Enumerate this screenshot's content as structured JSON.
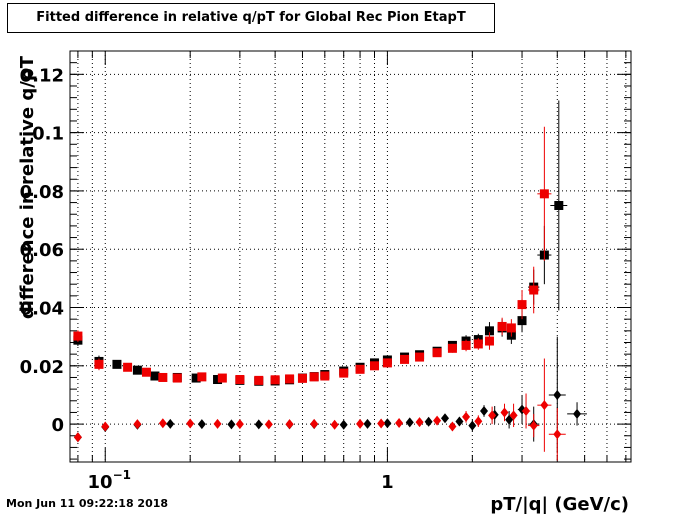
{
  "title": "Fitted difference in relative q/pT for Global Rec Pion EtapT",
  "timestamp": "Mon Jun 11 09:22:18 2018",
  "chart_data": {
    "type": "scatter",
    "title": "Fitted difference in relative q/pT for Global Rec Pion EtapT",
    "xlabel": "pT/|q| (GeV/c)",
    "ylabel": "difference in relative q/pT",
    "xscale": "log",
    "xlim": [
      0.075,
      7.3
    ],
    "ylim": [
      -0.013,
      0.128
    ],
    "grid": true,
    "y_ticks": [
      0,
      0.02,
      0.04,
      0.06,
      0.08,
      0.1,
      0.12
    ],
    "y_tick_labels": [
      "0",
      "0.02",
      "0.04",
      "0.06",
      "0.08",
      "0.1",
      "0.12"
    ],
    "x_major_ticks": [
      0.1,
      1
    ],
    "x_tick_labels": [
      "10^-1",
      "1"
    ],
    "colors": {
      "black": "#000000",
      "red": "#ee0000"
    },
    "series": [
      {
        "color": "black",
        "marker": "square",
        "points": [
          [
            0.08,
            0.0288,
            0.008,
            0.002
          ],
          [
            0.095,
            0.0215,
            0.007,
            0.002
          ],
          [
            0.11,
            0.0205,
            0.006,
            0.001
          ],
          [
            0.13,
            0.0185,
            0.005,
            0.001
          ],
          [
            0.15,
            0.0165,
            0.004,
            0.001
          ],
          [
            0.18,
            0.016,
            0.004,
            0.0008
          ],
          [
            0.21,
            0.0158,
            0.004,
            0.0008
          ],
          [
            0.25,
            0.0153,
            0.004,
            0.0008
          ],
          [
            0.3,
            0.015,
            0.004,
            0.0008
          ],
          [
            0.35,
            0.0147,
            0.004,
            0.0008
          ],
          [
            0.4,
            0.0148,
            0.004,
            0.0008
          ],
          [
            0.45,
            0.0152,
            0.004,
            0.0008
          ],
          [
            0.5,
            0.0158,
            0.004,
            0.0008
          ],
          [
            0.55,
            0.0163,
            0.004,
            0.0008
          ],
          [
            0.6,
            0.017,
            0.004,
            0.0008
          ],
          [
            0.7,
            0.0182,
            0.005,
            0.001
          ],
          [
            0.8,
            0.0195,
            0.005,
            0.001
          ],
          [
            0.9,
            0.021,
            0.005,
            0.001
          ],
          [
            1.0,
            0.022,
            0.005,
            0.001
          ],
          [
            1.15,
            0.023,
            0.006,
            0.001
          ],
          [
            1.3,
            0.0238,
            0.006,
            0.001
          ],
          [
            1.5,
            0.025,
            0.007,
            0.001
          ],
          [
            1.7,
            0.027,
            0.008,
            0.0015
          ],
          [
            1.9,
            0.0285,
            0.009,
            0.002
          ],
          [
            2.1,
            0.029,
            0.01,
            0.002
          ],
          [
            2.3,
            0.032,
            0.01,
            0.003
          ],
          [
            2.55,
            0.033,
            0.012,
            0.003
          ],
          [
            2.75,
            0.0305,
            0.013,
            0.003
          ],
          [
            3.0,
            0.0355,
            0.015,
            0.004
          ],
          [
            3.3,
            0.047,
            0.02,
            0.006
          ],
          [
            3.6,
            0.058,
            0.025,
            0.01
          ],
          [
            4.05,
            0.075,
            0.03,
            0.036
          ]
        ]
      },
      {
        "color": "red",
        "marker": "square",
        "points": [
          [
            0.08,
            0.0302,
            0.008,
            0.002
          ],
          [
            0.095,
            0.0205,
            0.007,
            0.002
          ],
          [
            0.12,
            0.0195,
            0.006,
            0.001
          ],
          [
            0.14,
            0.0178,
            0.005,
            0.001
          ],
          [
            0.16,
            0.016,
            0.004,
            0.001
          ],
          [
            0.18,
            0.0158,
            0.004,
            0.0008
          ],
          [
            0.22,
            0.0162,
            0.004,
            0.0008
          ],
          [
            0.26,
            0.0158,
            0.004,
            0.0008
          ],
          [
            0.3,
            0.0153,
            0.004,
            0.0008
          ],
          [
            0.35,
            0.015,
            0.004,
            0.0008
          ],
          [
            0.4,
            0.0152,
            0.004,
            0.0008
          ],
          [
            0.45,
            0.0155,
            0.004,
            0.0008
          ],
          [
            0.5,
            0.0157,
            0.004,
            0.0008
          ],
          [
            0.55,
            0.0162,
            0.004,
            0.0008
          ],
          [
            0.6,
            0.0165,
            0.004,
            0.0008
          ],
          [
            0.7,
            0.0175,
            0.005,
            0.001
          ],
          [
            0.8,
            0.0188,
            0.005,
            0.001
          ],
          [
            0.9,
            0.02,
            0.005,
            0.001
          ],
          [
            1.0,
            0.021,
            0.005,
            0.001
          ],
          [
            1.15,
            0.0222,
            0.006,
            0.001
          ],
          [
            1.3,
            0.023,
            0.006,
            0.001
          ],
          [
            1.5,
            0.0245,
            0.007,
            0.001
          ],
          [
            1.7,
            0.026,
            0.008,
            0.0015
          ],
          [
            1.9,
            0.027,
            0.009,
            0.002
          ],
          [
            2.1,
            0.0275,
            0.01,
            0.002
          ],
          [
            2.3,
            0.0285,
            0.01,
            0.003
          ],
          [
            2.55,
            0.0335,
            0.012,
            0.003
          ],
          [
            2.75,
            0.033,
            0.013,
            0.003
          ],
          [
            3.0,
            0.041,
            0.015,
            0.005
          ],
          [
            3.3,
            0.046,
            0.02,
            0.008
          ],
          [
            3.6,
            0.079,
            0.025,
            0.023
          ]
        ]
      },
      {
        "color": "black",
        "marker": "diamond",
        "points": [
          [
            0.08,
            -0.0045,
            0.008,
            0.001
          ],
          [
            0.1,
            -0.001,
            0.01,
            0.0008
          ],
          [
            0.13,
            -0.0002,
            0.01,
            0.0006
          ],
          [
            0.17,
            0.0001,
            0.005,
            0.0005
          ],
          [
            0.22,
            0.0,
            0.004,
            0.0005
          ],
          [
            0.28,
            -0.0001,
            0.004,
            0.0005
          ],
          [
            0.35,
            -0.0001,
            0.004,
            0.0005
          ],
          [
            0.45,
            -0.0001,
            0.004,
            0.0005
          ],
          [
            0.55,
            0.0,
            0.004,
            0.0005
          ],
          [
            0.7,
            -0.0002,
            0.005,
            0.0005
          ],
          [
            0.85,
            0.0001,
            0.005,
            0.0006
          ],
          [
            1.0,
            0.0003,
            0.005,
            0.0006
          ],
          [
            1.2,
            0.0006,
            0.006,
            0.0007
          ],
          [
            1.4,
            0.0008,
            0.007,
            0.0008
          ],
          [
            1.6,
            0.002,
            0.008,
            0.001
          ],
          [
            1.8,
            0.0009,
            0.008,
            0.0015
          ],
          [
            2.0,
            -0.0005,
            0.009,
            0.002
          ],
          [
            2.2,
            0.0045,
            0.01,
            0.002
          ],
          [
            2.4,
            0.0032,
            0.01,
            0.003
          ],
          [
            2.7,
            0.0015,
            0.012,
            0.003
          ],
          [
            3.0,
            0.005,
            0.015,
            0.005
          ],
          [
            3.3,
            0.0,
            0.02,
            0.006
          ],
          [
            4.0,
            0.01,
            0.03,
            0.02
          ],
          [
            4.7,
            0.0035,
            0.035,
            0.004
          ]
        ]
      },
      {
        "color": "red",
        "marker": "diamond",
        "points": [
          [
            0.08,
            -0.0045,
            0.008,
            0.001
          ],
          [
            0.1,
            -0.0008,
            0.01,
            0.0008
          ],
          [
            0.13,
            0.0,
            0.01,
            0.0006
          ],
          [
            0.16,
            0.0003,
            0.005,
            0.0005
          ],
          [
            0.2,
            0.0002,
            0.004,
            0.0005
          ],
          [
            0.25,
            0.0001,
            0.004,
            0.0005
          ],
          [
            0.3,
            0.0,
            0.004,
            0.0005
          ],
          [
            0.38,
            -0.0001,
            0.004,
            0.0005
          ],
          [
            0.45,
            0.0,
            0.004,
            0.0005
          ],
          [
            0.55,
            0.0001,
            0.004,
            0.0005
          ],
          [
            0.65,
            -0.0002,
            0.005,
            0.0005
          ],
          [
            0.8,
            0.0001,
            0.005,
            0.0006
          ],
          [
            0.95,
            0.0002,
            0.005,
            0.0006
          ],
          [
            1.1,
            0.0004,
            0.006,
            0.0007
          ],
          [
            1.3,
            0.0007,
            0.006,
            0.0008
          ],
          [
            1.5,
            0.0012,
            0.007,
            0.001
          ],
          [
            1.7,
            -0.0008,
            0.008,
            0.0015
          ],
          [
            1.9,
            0.0025,
            0.009,
            0.002
          ],
          [
            2.1,
            0.001,
            0.01,
            0.002
          ],
          [
            2.35,
            0.003,
            0.01,
            0.003
          ],
          [
            2.6,
            0.004,
            0.012,
            0.003
          ],
          [
            2.8,
            0.003,
            0.013,
            0.004
          ],
          [
            3.1,
            0.0045,
            0.015,
            0.006
          ],
          [
            3.3,
            -0.0005,
            0.02,
            0.004
          ],
          [
            3.6,
            0.0065,
            0.025,
            0.016
          ],
          [
            4.0,
            -0.0035,
            0.03,
            0.009
          ]
        ]
      }
    ]
  }
}
